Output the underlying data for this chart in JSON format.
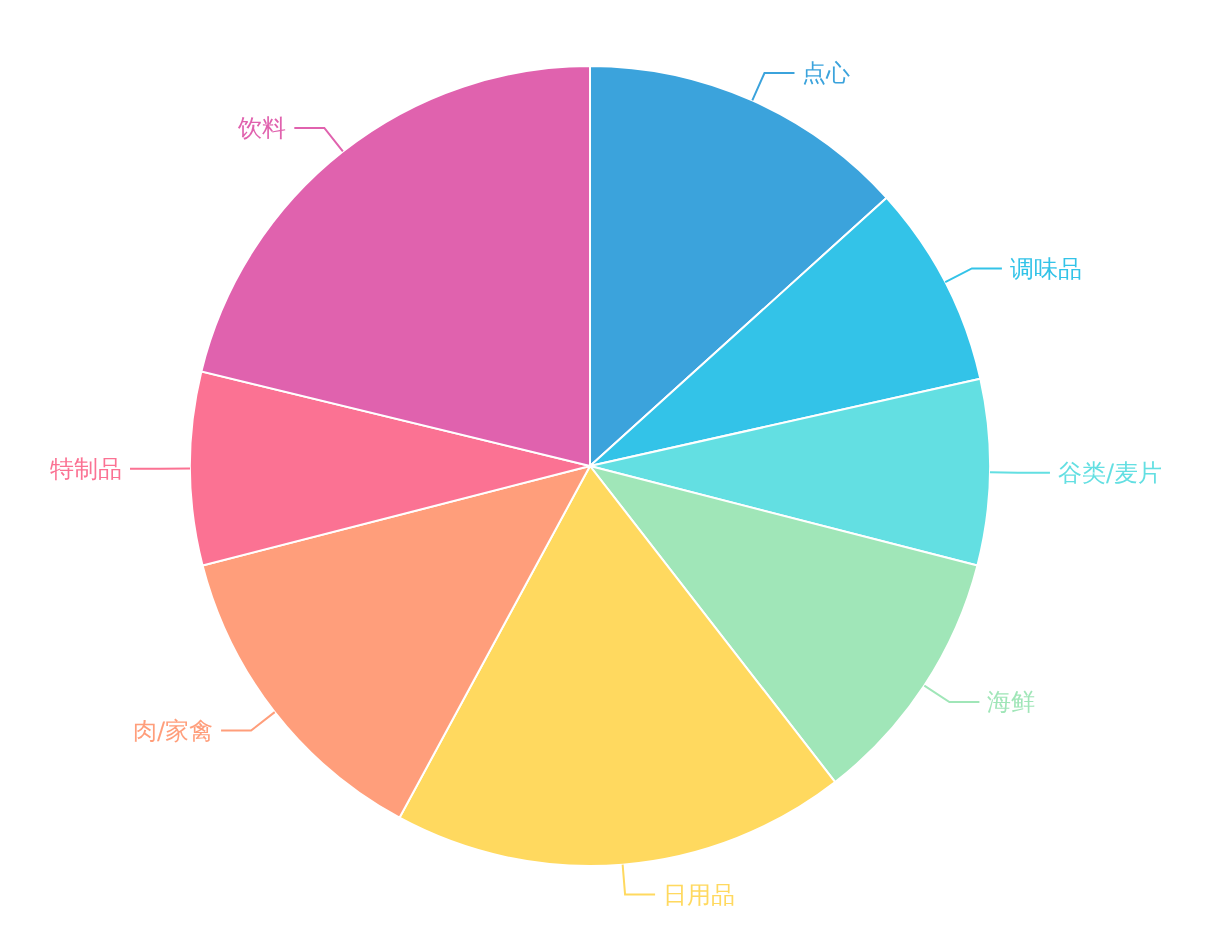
{
  "chart_data": {
    "type": "pie",
    "categories": [
      "点心",
      "调味品",
      "谷类/麦片",
      "海鲜",
      "日用品",
      "肉/家禽",
      "特制品",
      "饮料"
    ],
    "values": [
      13.3,
      8.2,
      7.5,
      10.5,
      18.4,
      13.1,
      7.8,
      21.2
    ],
    "colors": [
      "#3ba3dc",
      "#33c3e8",
      "#63dfe2",
      "#a0e6b8",
      "#ffd95f",
      "#ff9e7b",
      "#fb7293",
      "#e062ae"
    ]
  }
}
